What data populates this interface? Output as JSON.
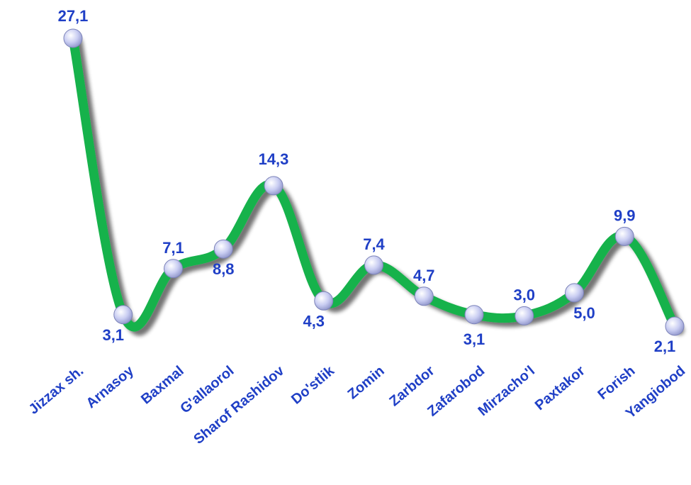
{
  "chart_data": {
    "type": "line",
    "categories": [
      "Jizzax sh.",
      "Arnasoy",
      "Baxmal",
      "G'allaorol",
      "Sharof Rashidov",
      "Do'stlik",
      "Zomin",
      "Zarbdor",
      "Zafarobod",
      "Mirzacho'l",
      "Paxtakor",
      "Forish",
      "Yangiobod"
    ],
    "series": [
      {
        "values": [
          27.1,
          3.1,
          7.1,
          8.8,
          14.3,
          4.3,
          7.4,
          4.7,
          3.1,
          3.0,
          5.0,
          9.9,
          2.1
        ],
        "labels": [
          "27,1",
          "3,1",
          "7,1",
          "8,8",
          "14,3",
          "4,3",
          "7,4",
          "4,7",
          "3,1",
          "3,0",
          "5,0",
          "9,9",
          "2,1"
        ]
      }
    ],
    "grid": false,
    "legend": "none",
    "colors": {
      "line": "#19b24b",
      "marker": "#c9cdf2",
      "label": "#1f3fc6"
    }
  }
}
